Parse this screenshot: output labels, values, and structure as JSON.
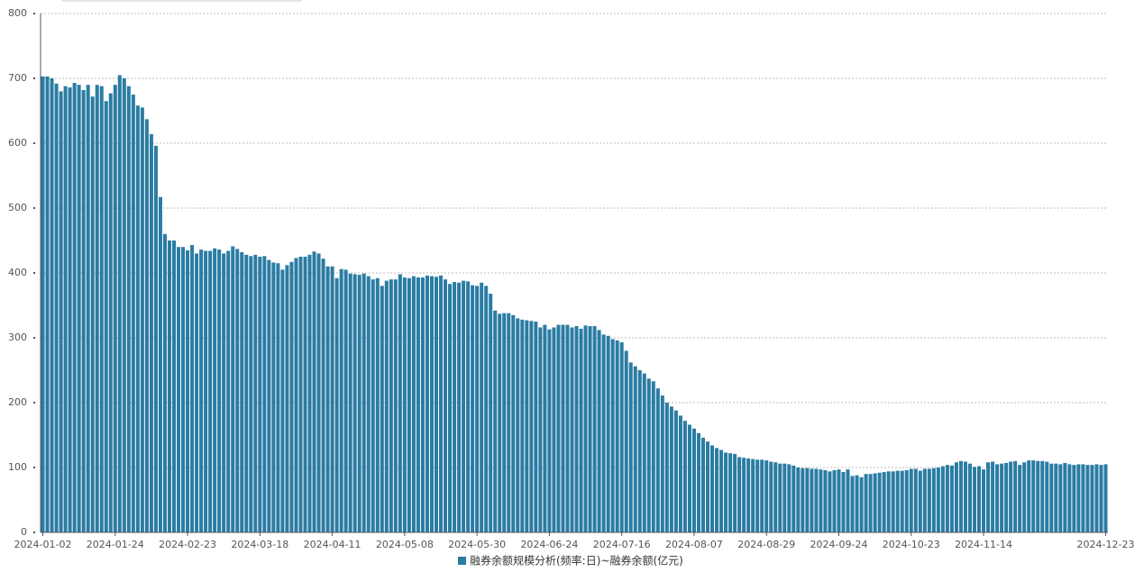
{
  "chart_data": {
    "type": "bar",
    "legend": "融券余额规模分析(频率:日)~融券余额(亿元)",
    "color": "#2a7ca3",
    "grid": true,
    "ylim": [
      0,
      800
    ],
    "yticks": [
      0,
      100,
      200,
      300,
      400,
      500,
      600,
      700,
      800
    ],
    "categories": [
      "2024-01-02",
      null,
      null,
      null,
      null,
      null,
      null,
      null,
      null,
      null,
      null,
      null,
      null,
      null,
      null,
      null,
      "2024-01-24",
      null,
      null,
      null,
      null,
      null,
      null,
      null,
      null,
      null,
      null,
      null,
      null,
      null,
      null,
      null,
      "2024-02-23",
      null,
      null,
      null,
      null,
      null,
      null,
      null,
      null,
      null,
      null,
      null,
      null,
      null,
      null,
      null,
      "2024-03-18",
      null,
      null,
      null,
      null,
      null,
      null,
      null,
      null,
      null,
      null,
      null,
      null,
      null,
      null,
      null,
      "2024-04-11",
      null,
      null,
      null,
      null,
      null,
      null,
      null,
      null,
      null,
      null,
      null,
      null,
      null,
      null,
      null,
      "2024-05-08",
      null,
      null,
      null,
      null,
      null,
      null,
      null,
      null,
      null,
      null,
      null,
      null,
      null,
      null,
      null,
      "2024-05-30",
      null,
      null,
      null,
      null,
      null,
      null,
      null,
      null,
      null,
      null,
      null,
      null,
      null,
      null,
      null,
      "2024-06-24",
      null,
      null,
      null,
      null,
      null,
      null,
      null,
      null,
      null,
      null,
      null,
      null,
      null,
      null,
      null,
      "2024-07-16",
      null,
      null,
      null,
      null,
      null,
      null,
      null,
      null,
      null,
      null,
      null,
      null,
      null,
      null,
      null,
      "2024-08-07",
      null,
      null,
      null,
      null,
      null,
      null,
      null,
      null,
      null,
      null,
      null,
      null,
      null,
      null,
      null,
      "2024-08-29",
      null,
      null,
      null,
      null,
      null,
      null,
      null,
      null,
      null,
      null,
      null,
      null,
      null,
      null,
      null,
      "2024-09-24",
      null,
      null,
      null,
      null,
      null,
      null,
      null,
      null,
      null,
      null,
      null,
      null,
      null,
      null,
      null,
      "2024-10-23",
      null,
      null,
      null,
      null,
      null,
      null,
      null,
      null,
      null,
      null,
      null,
      null,
      null,
      null,
      null,
      "2024-11-14",
      null,
      null,
      null,
      null,
      null,
      null,
      null,
      null,
      null,
      null,
      null,
      null,
      null,
      null,
      null,
      null,
      null,
      null,
      null,
      null,
      null,
      null,
      null,
      null,
      null,
      null,
      "2024-12-23"
    ],
    "values": [
      703,
      703,
      700,
      692,
      680,
      688,
      686,
      693,
      690,
      682,
      690,
      672,
      690,
      688,
      665,
      677,
      690,
      705,
      700,
      688,
      675,
      658,
      655,
      637,
      614,
      596,
      517,
      460,
      450,
      450,
      440,
      440,
      435,
      443,
      430,
      436,
      434,
      434,
      438,
      436,
      430,
      434,
      441,
      437,
      432,
      428,
      426,
      428,
      425,
      426,
      420,
      416,
      415,
      405,
      412,
      417,
      423,
      425,
      425,
      428,
      433,
      430,
      422,
      410,
      410,
      392,
      406,
      405,
      399,
      398,
      397,
      399,
      395,
      390,
      392,
      380,
      388,
      390,
      390,
      398,
      393,
      392,
      395,
      393,
      393,
      396,
      395,
      394,
      396,
      390,
      383,
      386,
      385,
      388,
      387,
      381,
      380,
      385,
      380,
      368,
      342,
      337,
      338,
      338,
      335,
      330,
      328,
      327,
      326,
      325,
      316,
      320,
      313,
      316,
      320,
      320,
      320,
      316,
      318,
      314,
      319,
      318,
      318,
      312,
      305,
      303,
      298,
      296,
      293,
      280,
      262,
      256,
      250,
      245,
      237,
      233,
      222,
      211,
      200,
      194,
      188,
      180,
      172,
      166,
      160,
      153,
      146,
      140,
      134,
      130,
      127,
      123,
      122,
      121,
      116,
      115,
      114,
      113,
      112,
      112,
      111,
      109,
      108,
      106,
      106,
      105,
      103,
      100,
      99,
      99,
      98,
      98,
      97,
      96,
      94,
      96,
      97,
      93,
      97,
      87,
      88,
      85,
      90,
      90,
      91,
      92,
      93,
      94,
      94,
      95,
      95,
      96,
      98,
      98,
      95,
      98,
      98,
      99,
      100,
      102,
      104,
      103,
      108,
      110,
      109,
      106,
      101,
      102,
      97,
      108,
      109,
      105,
      106,
      107,
      109,
      110,
      104,
      108,
      111,
      111,
      110,
      110,
      109,
      106,
      106,
      105,
      107,
      105,
      104,
      105,
      105,
      104,
      104,
      105,
      104,
      105
    ]
  }
}
